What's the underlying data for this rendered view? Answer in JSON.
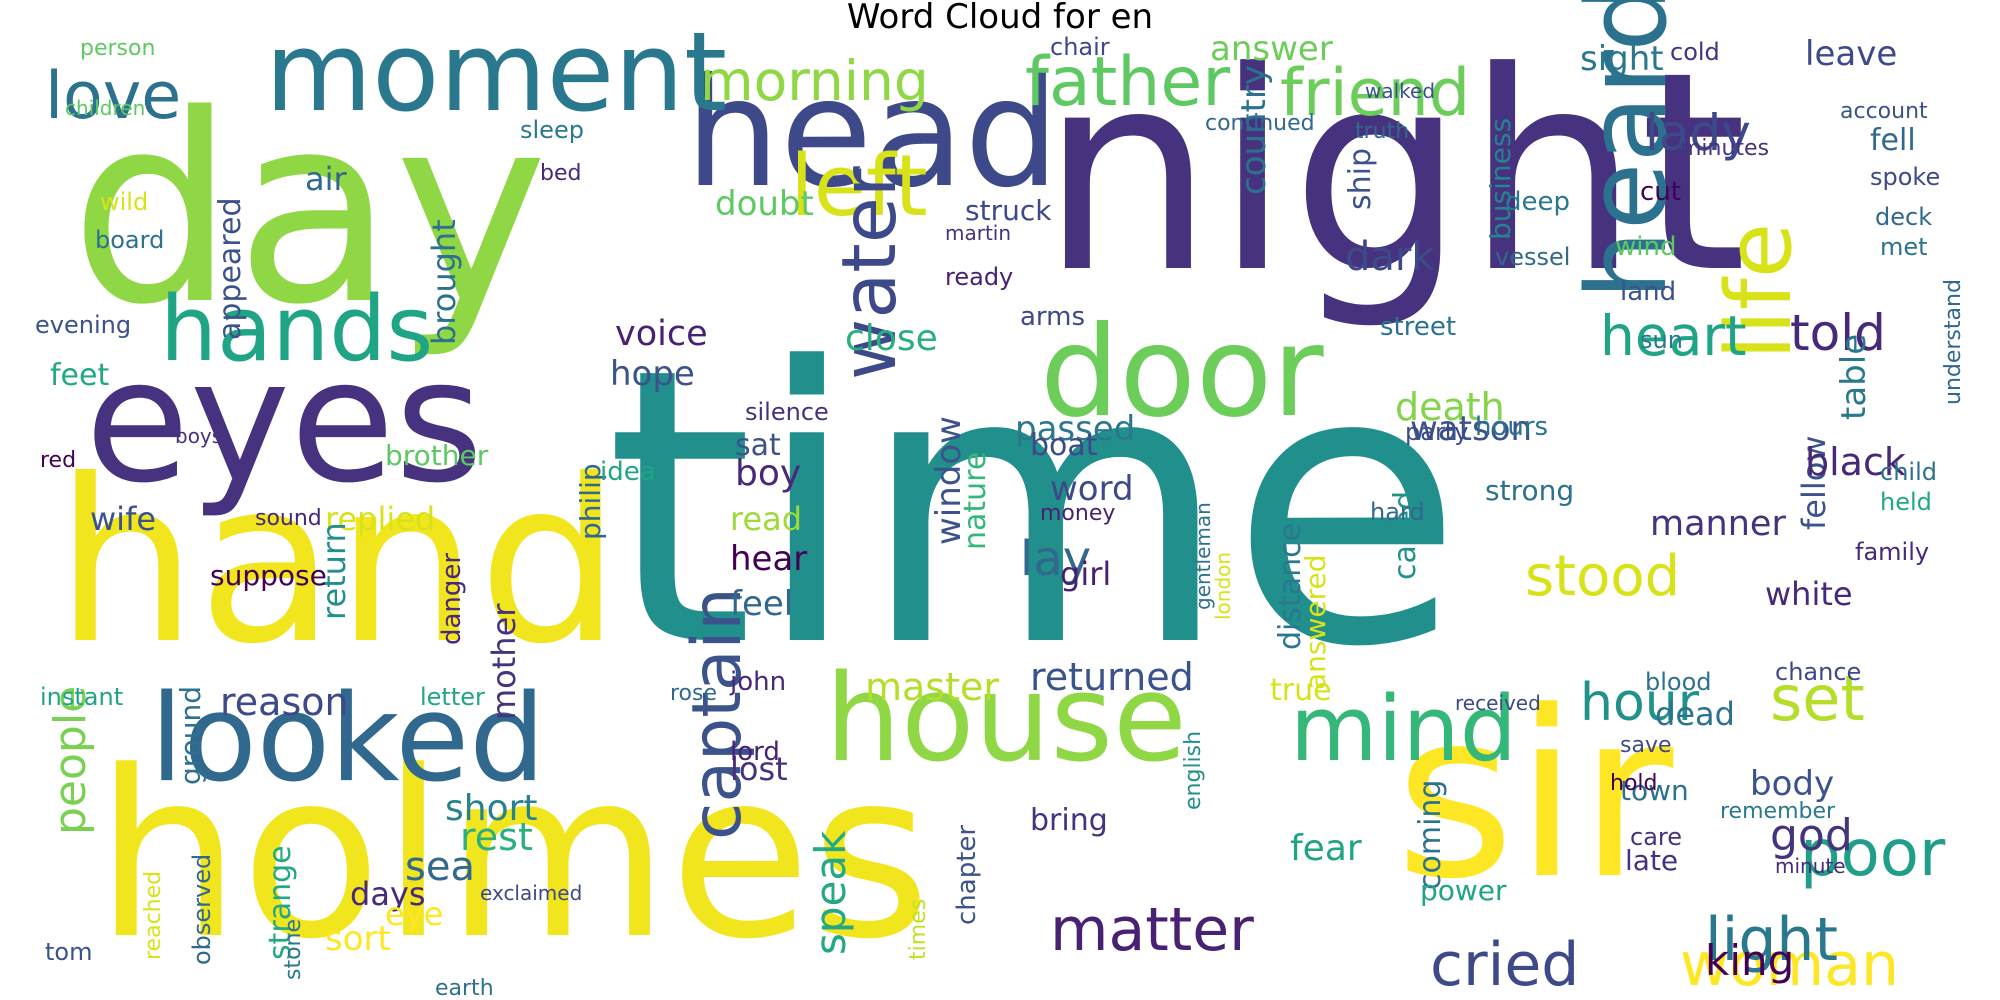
{
  "chart_data": {
    "type": "wordcloud",
    "title": "Word Cloud for en",
    "colormap": "viridis",
    "background": "#ffffff",
    "words": [
      {
        "text": "time",
        "c": "#21908d"
      },
      {
        "text": "night",
        "c": "#46327e"
      },
      {
        "text": "holmes",
        "c": "#f1e51d"
      },
      {
        "text": "day",
        "c": "#8fd744"
      },
      {
        "text": "sir",
        "c": "#fde725"
      },
      {
        "text": "hand",
        "c": "#f1e51d"
      },
      {
        "text": "head",
        "c": "#3e4989"
      },
      {
        "text": "eyes",
        "c": "#46327e"
      },
      {
        "text": "moment",
        "c": "#2a788e"
      },
      {
        "text": "door",
        "c": "#6ccd5a"
      },
      {
        "text": "house",
        "c": "#8fd744"
      },
      {
        "text": "looked",
        "c": "#31688e"
      },
      {
        "text": "hands",
        "c": "#20a486"
      },
      {
        "text": "left",
        "c": "#d8e219"
      },
      {
        "text": "heard",
        "c": "#2c728e"
      },
      {
        "text": "water",
        "c": "#3e4989"
      },
      {
        "text": "mind",
        "c": "#35b779"
      },
      {
        "text": "life",
        "c": "#d8e219"
      },
      {
        "text": "matter",
        "c": "#482173"
      },
      {
        "text": "father",
        "c": "#5ec962"
      },
      {
        "text": "friend",
        "c": "#6ccd5a"
      },
      {
        "text": "morning",
        "c": "#8fd744"
      },
      {
        "text": "love",
        "c": "#2c728e"
      },
      {
        "text": "captain",
        "c": "#3b528b"
      },
      {
        "text": "woman",
        "c": "#fde725"
      },
      {
        "text": "light",
        "c": "#2a788e"
      },
      {
        "text": "cried",
        "c": "#3e4989"
      },
      {
        "text": "stood",
        "c": "#d8e219"
      },
      {
        "text": "heart",
        "c": "#20a486"
      },
      {
        "text": "told",
        "c": "#482878"
      },
      {
        "text": "lady",
        "c": "#3e4989"
      },
      {
        "text": "set",
        "c": "#b5de2b"
      },
      {
        "text": "poor",
        "c": "#1f9e89"
      },
      {
        "text": "hour",
        "c": "#21918c"
      },
      {
        "text": "voice",
        "c": "#482173"
      },
      {
        "text": "master",
        "c": "#b5de2b"
      },
      {
        "text": "returned",
        "c": "#3b528b"
      },
      {
        "text": "speak",
        "c": "#22a884"
      },
      {
        "text": "people",
        "c": "#7ad151"
      },
      {
        "text": "death",
        "c": "#84d44b"
      },
      {
        "text": "watson",
        "c": "#3b528b"
      },
      {
        "text": "passed",
        "c": "#2a788e"
      },
      {
        "text": "god",
        "c": "#46337e"
      },
      {
        "text": "king",
        "c": "#440154"
      },
      {
        "text": "lay",
        "c": "#31688e"
      },
      {
        "text": "dark",
        "c": "#3e4989"
      },
      {
        "text": "fellow",
        "c": "#3b528b"
      },
      {
        "text": "table",
        "c": "#2a788e"
      },
      {
        "text": "manner",
        "c": "#46327e"
      },
      {
        "text": "black",
        "c": "#482878"
      },
      {
        "text": "white",
        "c": "#482878"
      },
      {
        "text": "body",
        "c": "#3b528b"
      },
      {
        "text": "dead",
        "c": "#2c728e"
      },
      {
        "text": "fear",
        "c": "#20a486"
      },
      {
        "text": "rest",
        "c": "#2ab07f"
      },
      {
        "text": "sea",
        "c": "#31688e"
      },
      {
        "text": "short",
        "c": "#26828e"
      },
      {
        "text": "reason",
        "c": "#3e4989"
      },
      {
        "text": "hope",
        "c": "#3b528b"
      },
      {
        "text": "boy",
        "c": "#482878"
      },
      {
        "text": "girl",
        "c": "#481f70"
      },
      {
        "text": "hear",
        "c": "#440154"
      },
      {
        "text": "feel",
        "c": "#31688e"
      },
      {
        "text": "lost",
        "c": "#46327e"
      },
      {
        "text": "word",
        "c": "#3e4989"
      },
      {
        "text": "window",
        "c": "#3b528b"
      },
      {
        "text": "nature",
        "c": "#35b779"
      },
      {
        "text": "close",
        "c": "#29af7f"
      },
      {
        "text": "sat",
        "c": "#3b528b"
      },
      {
        "text": "read",
        "c": "#9fda3a"
      },
      {
        "text": "doubt",
        "c": "#5ec962"
      },
      {
        "text": "struck",
        "c": "#3e4989"
      },
      {
        "text": "country",
        "c": "#2c728e"
      },
      {
        "text": "business",
        "c": "#26828e"
      },
      {
        "text": "ship",
        "c": "#3b528b"
      },
      {
        "text": "sight",
        "c": "#2a788e"
      },
      {
        "text": "answer",
        "c": "#6ccd5a"
      },
      {
        "text": "leave",
        "c": "#3e4989"
      },
      {
        "text": "fell",
        "c": "#31688e"
      },
      {
        "text": "wife",
        "c": "#3b528b"
      },
      {
        "text": "replied",
        "c": "#d8e219"
      },
      {
        "text": "feet",
        "c": "#22a884"
      },
      {
        "text": "appeared",
        "c": "#3b528b"
      },
      {
        "text": "brought",
        "c": "#2c728e"
      },
      {
        "text": "air",
        "c": "#31688e"
      },
      {
        "text": "mother",
        "c": "#46327e"
      },
      {
        "text": "return",
        "c": "#21908d"
      },
      {
        "text": "ground",
        "c": "#2c728e"
      },
      {
        "text": "days",
        "c": "#482878"
      },
      {
        "text": "sort",
        "c": "#fde725"
      },
      {
        "text": "eye",
        "c": "#fde725"
      },
      {
        "text": "strange",
        "c": "#22a884"
      },
      {
        "text": "called",
        "c": "#21918c"
      },
      {
        "text": "answered",
        "c": "#d8e219"
      },
      {
        "text": "distance",
        "c": "#2a788e"
      },
      {
        "text": "true",
        "c": "#d8e219"
      },
      {
        "text": "coming",
        "c": "#2c728e"
      },
      {
        "text": "strong",
        "c": "#2c728e"
      },
      {
        "text": "boat",
        "c": "#3e4989"
      },
      {
        "text": "philip",
        "c": "#31688e"
      },
      {
        "text": "brother",
        "c": "#5ec962"
      },
      {
        "text": "suppose",
        "c": "#440154"
      },
      {
        "text": "bring",
        "c": "#46327e"
      },
      {
        "text": "power",
        "c": "#20a486"
      },
      {
        "text": "chapter",
        "c": "#3b528b"
      },
      {
        "text": "times",
        "c": "#c2df23"
      },
      {
        "text": "john",
        "c": "#482878"
      },
      {
        "text": "lord",
        "c": "#482173"
      },
      {
        "text": "town",
        "c": "#2c728e"
      },
      {
        "text": "late",
        "c": "#46327e"
      },
      {
        "text": "hours",
        "c": "#2c728e"
      },
      {
        "text": "party",
        "c": "#3e4989"
      },
      {
        "text": "hard",
        "c": "#31688e"
      },
      {
        "text": "street",
        "c": "#2c728e"
      },
      {
        "text": "arms",
        "c": "#3e4989"
      },
      {
        "text": "silence",
        "c": "#46327e"
      },
      {
        "text": "idea",
        "c": "#20a486"
      },
      {
        "text": "wind",
        "c": "#5ec962"
      },
      {
        "text": "land",
        "c": "#3b528b"
      },
      {
        "text": "deck",
        "c": "#31688e"
      },
      {
        "text": "held",
        "c": "#22a884"
      },
      {
        "text": "family",
        "c": "#482878"
      },
      {
        "text": "chance",
        "c": "#3e4989"
      },
      {
        "text": "remember",
        "c": "#2a788e"
      },
      {
        "text": "minute",
        "c": "#482878"
      },
      {
        "text": "child",
        "c": "#2c728e"
      },
      {
        "text": "spoke",
        "c": "#3e4989"
      },
      {
        "text": "met",
        "c": "#2c728e"
      },
      {
        "text": "account",
        "c": "#3b528b"
      },
      {
        "text": "minutes",
        "c": "#46327e"
      },
      {
        "text": "cold",
        "c": "#46327e"
      },
      {
        "text": "cut",
        "c": "#440154"
      },
      {
        "text": "deep",
        "c": "#2a788e"
      },
      {
        "text": "vessel",
        "c": "#31688e"
      },
      {
        "text": "sun",
        "c": "#2a788e"
      },
      {
        "text": "understand",
        "c": "#31688e"
      },
      {
        "text": "care",
        "c": "#46327e"
      },
      {
        "text": "hold",
        "c": "#440154"
      },
      {
        "text": "save",
        "c": "#3e4989"
      },
      {
        "text": "blood",
        "c": "#2c728e"
      },
      {
        "text": "received",
        "c": "#3e4989"
      },
      {
        "text": "letter",
        "c": "#20a486"
      },
      {
        "text": "instant",
        "c": "#20a486"
      },
      {
        "text": "danger",
        "c": "#482878"
      },
      {
        "text": "gentleman",
        "c": "#2c728e"
      },
      {
        "text": "english",
        "c": "#21908d"
      },
      {
        "text": "london",
        "c": "#d8e219"
      },
      {
        "text": "money",
        "c": "#482173"
      },
      {
        "text": "ready",
        "c": "#482173"
      },
      {
        "text": "martin",
        "c": "#46327e"
      },
      {
        "text": "continued",
        "c": "#31688e"
      },
      {
        "text": "truth",
        "c": "#31688e"
      },
      {
        "text": "walked",
        "c": "#3b528b"
      },
      {
        "text": "chair",
        "c": "#3e4989"
      },
      {
        "text": "sleep",
        "c": "#2a788e"
      },
      {
        "text": "bed",
        "c": "#482878"
      },
      {
        "text": "board",
        "c": "#2c728e"
      },
      {
        "text": "wild",
        "c": "#d8e219"
      },
      {
        "text": "evening",
        "c": "#3b528b"
      },
      {
        "text": "person",
        "c": "#5ec962"
      },
      {
        "text": "children",
        "c": "#5ec962"
      },
      {
        "text": "observed",
        "c": "#31688e"
      },
      {
        "text": "reached",
        "c": "#d8e219"
      },
      {
        "text": "tom",
        "c": "#3b528b"
      },
      {
        "text": "exclaimed",
        "c": "#3e4989"
      },
      {
        "text": "earth",
        "c": "#2c728e"
      },
      {
        "text": "stone",
        "c": "#2a788e"
      },
      {
        "text": "rose",
        "c": "#31688e"
      },
      {
        "text": "red",
        "c": "#440154"
      },
      {
        "text": "sound",
        "c": "#482878"
      },
      {
        "text": "boys",
        "c": "#46327e"
      }
    ]
  }
}
